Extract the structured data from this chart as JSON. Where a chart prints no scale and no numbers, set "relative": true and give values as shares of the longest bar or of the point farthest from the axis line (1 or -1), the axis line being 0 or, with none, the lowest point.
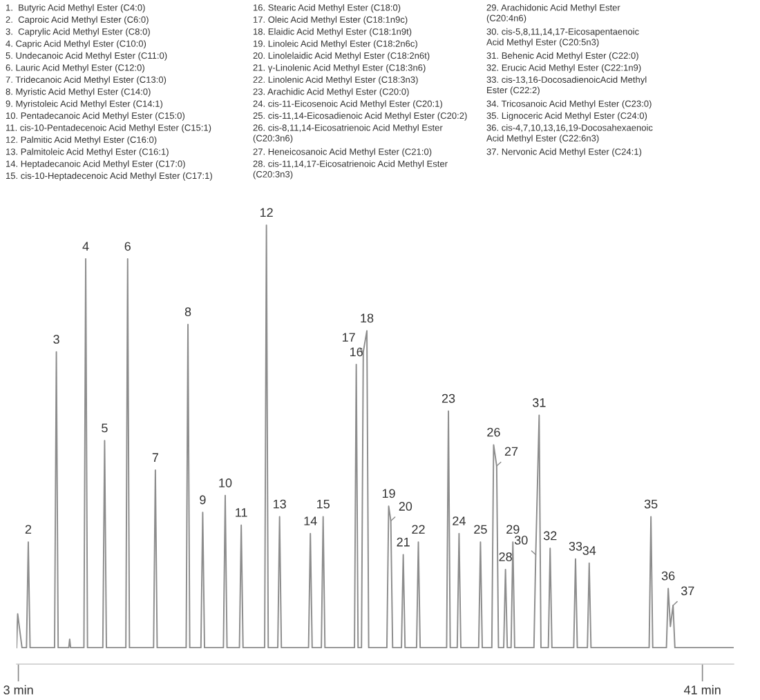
{
  "chart_data": {
    "type": "line",
    "relative": true,
    "grid": false,
    "legend": false,
    "tick_labels": "x",
    "xlim": [
      2.9,
      42.74
    ],
    "xticks": [
      {
        "value": 3,
        "label": "3 min"
      },
      {
        "value": 41,
        "label": "41 min"
      }
    ],
    "series": [
      {
        "color": "#8c8c8c",
        "x": [
          2.9,
          2.96,
          3.2,
          3.45,
          3.55,
          3.65,
          5.01,
          5.11,
          5.21,
          5.8,
          5.85,
          5.9,
          6.64,
          6.74,
          6.84,
          7.69,
          7.79,
          7.89,
          8.97,
          9.07,
          9.17,
          10.51,
          10.61,
          10.71,
          12.32,
          12.42,
          12.52,
          13.14,
          13.24,
          13.34,
          14.39,
          14.49,
          14.59,
          15.28,
          15.38,
          15.48,
          16.68,
          16.78,
          16.88,
          17.41,
          17.51,
          17.61,
          19.12,
          19.22,
          19.32,
          19.83,
          19.93,
          20.03,
          21.67,
          21.77,
          21.87,
          22.06,
          22.16,
          22.36,
          22.46,
          23.47,
          23.57,
          23.69,
          23.79,
          24.28,
          24.38,
          24.48,
          25.12,
          25.22,
          25.32,
          26.79,
          26.89,
          26.99,
          27.38,
          27.48,
          27.58,
          28.57,
          28.67,
          28.77,
          29.3,
          29.4,
          29.57,
          29.67,
          29.96,
          30.06,
          30.16,
          30.37,
          30.47,
          30.57,
          31.64,
          31.74,
          31.93,
          32.03,
          32.44,
          32.54,
          32.64,
          33.85,
          33.95,
          34.05,
          34.61,
          34.71,
          34.81,
          38.04,
          38.14,
          38.24,
          39.0,
          39.1,
          39.22,
          39.37,
          39.47,
          42.74
        ],
        "values": [
          0,
          0.08,
          0,
          0,
          0.25,
          0,
          0,
          0.7,
          0,
          0,
          0.02,
          0,
          0,
          0.92,
          0,
          0,
          0.49,
          0,
          0,
          0.92,
          0,
          0,
          0.42,
          0,
          0,
          0.765,
          0,
          0,
          0.32,
          0,
          0,
          0.36,
          0,
          0,
          0.29,
          0,
          0,
          1,
          0,
          0,
          0.31,
          0,
          0,
          0.27,
          0,
          0,
          0.31,
          0,
          0,
          0.67,
          0,
          0,
          0.7,
          0.75,
          0,
          0,
          0.335,
          0.3,
          0,
          0,
          0.22,
          0,
          0,
          0.25,
          0,
          0,
          0.56,
          0,
          0,
          0.27,
          0,
          0,
          0.25,
          0,
          0,
          0.48,
          0.43,
          0,
          0,
          0.185,
          0,
          0,
          0.25,
          0,
          0,
          0.22,
          0.55,
          0,
          0,
          0.235,
          0,
          0,
          0.21,
          0,
          0,
          0.2,
          0,
          0,
          0.31,
          0,
          0,
          0.14,
          0.05,
          0.1,
          0,
          0
        ]
      }
    ],
    "annotations": [
      "1.  Butyric Acid Methyl Ester (C4:0)",
      "2.  Caproic Acid Methyl Ester (C6:0)",
      "3.  Caprylic Acid Methyl Ester (C8:0)",
      "4. Capric Acid Methyl Ester (C10:0)",
      "5. Undecanoic Acid Methyl Ester (C11:0)",
      "6. Lauric Acid Methyl Ester (C12:0)",
      "7. Tridecanoic Acid Methyl Ester (C13:0)",
      "8. Myristic Acid Methyl Ester (C14:0)",
      "9. Myristoleic Acid Methyl Ester (C14:1)",
      "10. Pentadecanoic Acid Methyl Ester (C15:0)",
      "11. cis-10-Pentadecenoic Acid Methyl Ester (C15:1)",
      "12. Palmitic Acid Methyl Ester (C16:0)",
      "13. Palmitoleic Acid Methyl Ester (C16:1)",
      "14. Heptadecanoic Acid Methyl Ester (C17:0)",
      "15. cis-10-Heptadecenoic Acid Methyl Ester (C17:1)",
      "16. Stearic Acid Methyl Ester (C18:0)",
      "17. Oleic Acid Methyl Ester (C18:1n9c)",
      "18. Elaidic Acid Methyl Ester (C18:1n9t)",
      "19. Linoleic Acid Methyl Ester (C18:2n6c)",
      "20. Linolelaidic Acid Methyl Ester (C18:2n6t)",
      "21. γ-Linolenic Acid Methyl Ester (C18:3n6)",
      "22. Linolenic Acid Methyl Ester (C18:3n3)",
      "23. Arachidic Acid Methyl Ester (C20:0)",
      "24. cis-11-Eicosenoic Acid Methyl Ester (C20:1)",
      "25. cis-11,14-Eicosadienoic Acid Methyl Ester (C20:2)",
      "26. cis-8,11,14-Eicosatrienoic Acid Methyl Ester\n(C20:3n6)",
      "27. Heneicosanoic Acid Methyl Ester (C21:0)",
      "28. cis-11,14,17-Eicosatrienoic Acid Methyl Ester\n(C20:3n3)",
      "29. Arachidonic Acid Methyl Ester\n(C20:4n6)",
      "30. cis-5,8,11,14,17-Eicosapentaenoic\nAcid Methyl Ester (C20:5n3)",
      "31. Behenic Acid Methyl Ester (C22:0)",
      "32. Erucic Acid Methyl Ester (C22:1n9)",
      "33. cis-13,16-DocosadienoicAcid Methyl\nEster (C22:2)",
      "34. Tricosanoic Acid Methyl Ester (C23:0)",
      "35. Lignoceric Acid Methyl Ester (C24:0)",
      "36. cis-4,7,10,13,16,19-Docosahexaenoic\nAcid Methyl Ester (C22:6n3)",
      "37. Nervonic Acid Methyl Ester (C24:1)",
      {
        "text": "2",
        "x": 3.55,
        "y": 0.25
      },
      {
        "text": "3",
        "x": 5.11,
        "y": 0.7
      },
      {
        "text": "4",
        "x": 6.74,
        "y": 0.92
      },
      {
        "text": "5",
        "x": 7.79,
        "y": 0.49
      },
      {
        "text": "6",
        "x": 9.07,
        "y": 0.92
      },
      {
        "text": "7",
        "x": 10.61,
        "y": 0.42
      },
      {
        "text": "8",
        "x": 12.42,
        "y": 0.765
      },
      {
        "text": "9",
        "x": 13.24,
        "y": 0.32
      },
      {
        "text": "10",
        "x": 14.49,
        "y": 0.36
      },
      {
        "text": "11",
        "x": 15.38,
        "y": 0.29
      },
      {
        "text": "12",
        "x": 16.78,
        "y": 1
      },
      {
        "text": "13",
        "x": 17.51,
        "y": 0.31
      },
      {
        "text": "14",
        "x": 19.22,
        "y": 0.27
      },
      {
        "text": "15",
        "x": 19.93,
        "y": 0.31
      },
      {
        "text": "16",
        "x": 21.77,
        "y": 0.67
      },
      {
        "text": "17",
        "x": 22.16,
        "y": 0.7
      },
      {
        "text": "18",
        "x": 22.36,
        "y": 0.75
      },
      {
        "text": "19",
        "x": 23.57,
        "y": 0.335
      },
      {
        "text": "20",
        "x": 23.69,
        "y": 0.3
      },
      {
        "text": "21",
        "x": 24.38,
        "y": 0.22
      },
      {
        "text": "22",
        "x": 25.22,
        "y": 0.25
      },
      {
        "text": "23",
        "x": 26.89,
        "y": 0.56
      },
      {
        "text": "24",
        "x": 27.48,
        "y": 0.27
      },
      {
        "text": "25",
        "x": 28.67,
        "y": 0.25
      },
      {
        "text": "26",
        "x": 29.4,
        "y": 0.48
      },
      {
        "text": "27",
        "x": 29.57,
        "y": 0.43
      },
      {
        "text": "28",
        "x": 30.06,
        "y": 0.185
      },
      {
        "text": "29",
        "x": 30.47,
        "y": 0.25
      },
      {
        "text": "30",
        "x": 31.74,
        "y": 0.22
      },
      {
        "text": "31",
        "x": 31.93,
        "y": 0.55
      },
      {
        "text": "32",
        "x": 32.54,
        "y": 0.235
      },
      {
        "text": "33",
        "x": 33.95,
        "y": 0.21
      },
      {
        "text": "34",
        "x": 34.71,
        "y": 0.2
      },
      {
        "text": "35",
        "x": 38.14,
        "y": 0.31
      },
      {
        "text": "36",
        "x": 39.1,
        "y": 0.14
      },
      {
        "text": "37",
        "x": 39.37,
        "y": 0.1
      }
    ]
  }
}
